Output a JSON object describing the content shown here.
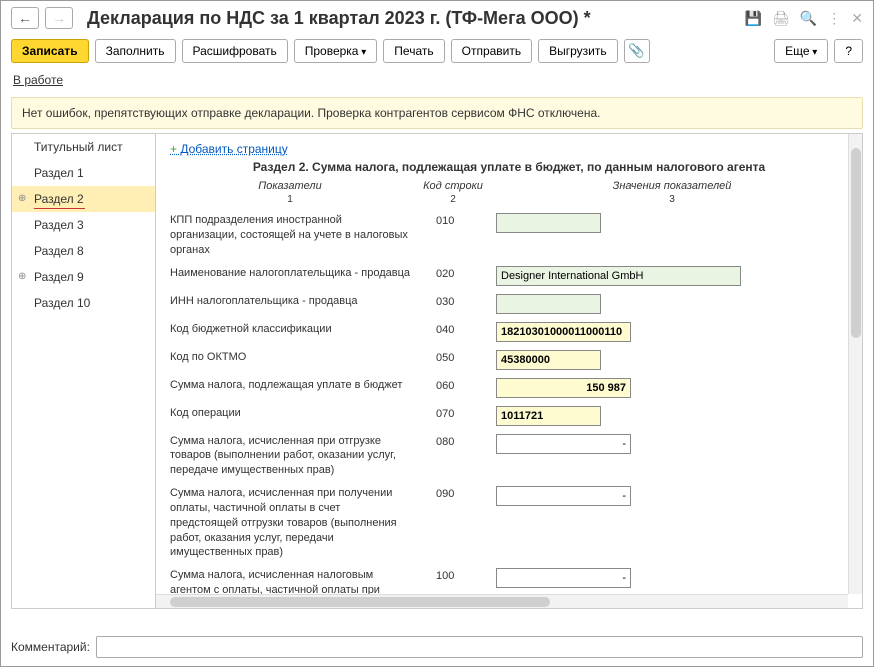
{
  "header": {
    "title": "Декларация по НДС за 1 квартал 2023 г. (ТФ-Мега ООО) *"
  },
  "toolbar": {
    "save": "Записать",
    "fill": "Заполнить",
    "decrypt": "Расшифровать",
    "check": "Проверка",
    "print": "Печать",
    "send": "Отправить",
    "upload": "Выгрузить",
    "more": "Еще",
    "help": "?"
  },
  "status_link": "В работе",
  "status_bar": "Нет ошибок, препятствующих отправке декларации. Проверка контрагентов сервисом ФНС отключена.",
  "sidebar": {
    "items": [
      {
        "label": "Титульный лист",
        "active": false,
        "marker": false
      },
      {
        "label": "Раздел 1",
        "active": false,
        "marker": false
      },
      {
        "label": "Раздел 2",
        "active": true,
        "marker": true
      },
      {
        "label": "Раздел 3",
        "active": false,
        "marker": false
      },
      {
        "label": "Раздел 8",
        "active": false,
        "marker": false
      },
      {
        "label": "Раздел 9",
        "active": false,
        "marker": true
      },
      {
        "label": "Раздел 10",
        "active": false,
        "marker": false
      }
    ]
  },
  "content": {
    "add_page": "Добавить страницу",
    "section_title": "Раздел 2. Сумма налога, подлежащая уплате в бюджет, по данным налогового агента",
    "col1": "Показатели",
    "col2": "Код строки",
    "col3": "Значения показателей",
    "rows": [
      {
        "label": "КПП подразделения иностранной организации, состоящей на учете в налоговых органах",
        "code": "010",
        "value": "",
        "cls": "inp w-small"
      },
      {
        "label": "Наименование налогоплательщика - продавца",
        "code": "020",
        "value": "Designer International GmbH",
        "cls": "inp w-wide"
      },
      {
        "label": "ИНН налогоплательщика - продавца",
        "code": "030",
        "value": "",
        "cls": "inp w-small"
      },
      {
        "label": "Код бюджетной классификации",
        "code": "040",
        "value": "18210301000011000110",
        "cls": "inp yellow w-med"
      },
      {
        "label": "Код по ОКТМО",
        "code": "050",
        "value": "45380000",
        "cls": "inp yellow w-small"
      },
      {
        "label": "Сумма налога, подлежащая уплате в бюджет",
        "code": "060",
        "value": "150 987",
        "cls": "inp yellow w-med",
        "align": "right"
      },
      {
        "label": "Код операции",
        "code": "070",
        "value": "1011721",
        "cls": "inp yellow w-small"
      },
      {
        "label": "Сумма налога, исчисленная при отгрузке товаров (выполнении работ, оказании услуг, передаче имущественных прав)",
        "code": "080",
        "value": "-",
        "cls": "inp white w-med"
      },
      {
        "label": "Сумма налога, исчисленная при получении оплаты, частичной оплаты в счет предстоящей отгрузки товаров (выполнения работ, оказания услуг, передачи имущественных прав)",
        "code": "090",
        "value": "-",
        "cls": "inp white w-med"
      },
      {
        "label": "Сумма налога, исчисленная налоговым агентом с оплаты, частичной оплаты при отгрузке товаров (выполнении работ, оказании услуг, передаче имущественных прав) в счет этой оплаты, частичной оплаты",
        "code": "100",
        "value": "-",
        "cls": "inp white w-med"
      }
    ]
  },
  "footer": {
    "label": "Комментарий:",
    "value": ""
  }
}
